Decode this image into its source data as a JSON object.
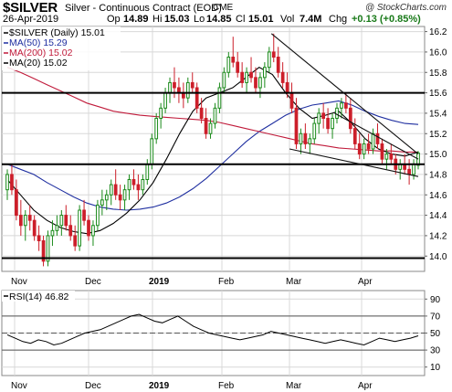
{
  "header": {
    "symbol": "$SILVER",
    "description": "Silver - Continuous Contract (EOD)",
    "exchange": "CME",
    "copyright": "@ StockCharts.com",
    "date": "26-Apr-2019",
    "open_label": "Op",
    "open": "14.89",
    "high_label": "Hi",
    "high": "15.03",
    "low_label": "Lo",
    "low": "14.85",
    "close_label": "Cl",
    "close": "15.01",
    "vol_label": "Vol",
    "vol": "7.4M",
    "chg_label": "Chg",
    "chg": "+0.13 (+0.85%)"
  },
  "legend": {
    "main": "$SILVER (Daily) 15.01",
    "ma50": "MA(50) 15.29",
    "ma200": "MA(200) 15.02",
    "ma20": "MA(20) 15.02",
    "rsi": "RSI(14) 46.82"
  },
  "colors": {
    "up": "#1a8a1a",
    "down": "#cc1f2a",
    "ma50": "#1f2fa0",
    "ma200": "#c01a3a",
    "ma20": "#000000",
    "grid": "#d8d8d8",
    "rsi_line": "#000000"
  },
  "chart_data": [
    {
      "type": "candlestick",
      "title": "$SILVER (Daily)",
      "ylim": [
        13.85,
        16.25
      ],
      "y_ticks": [
        "14.0",
        "14.2",
        "14.4",
        "14.6",
        "14.8",
        "15.0",
        "15.2",
        "15.4",
        "15.6",
        "15.8",
        "16.0",
        "16.2"
      ],
      "x_ticks": [
        "Nov",
        "Dec",
        "2019",
        "Feb",
        "Mar",
        "Apr"
      ],
      "grid": true,
      "legend_position": "top-left",
      "horizontal_lines": [
        15.6,
        14.9,
        13.98
      ],
      "trendlines": [
        {
          "from": [
            "2019-02-20",
            16.18
          ],
          "to": [
            "2019-04-26",
            15.0
          ]
        },
        {
          "from": [
            "2019-02-28",
            15.05
          ],
          "to": [
            "2019-04-26",
            14.78
          ]
        },
        {
          "from": [
            "2019-03-20",
            15.4
          ],
          "to": [
            "2019-04-26",
            14.95
          ]
        }
      ],
      "candles": [
        [
          14.65,
          14.85,
          14.55,
          14.8
        ],
        [
          14.8,
          14.9,
          14.6,
          14.65
        ],
        [
          14.65,
          14.75,
          14.35,
          14.4
        ],
        [
          14.4,
          14.55,
          14.2,
          14.3
        ],
        [
          14.3,
          14.45,
          14.15,
          14.4
        ],
        [
          14.4,
          14.5,
          14.25,
          14.35
        ],
        [
          14.35,
          14.4,
          14.15,
          14.2
        ],
        [
          14.2,
          14.3,
          14.05,
          14.15
        ],
        [
          14.15,
          14.2,
          13.9,
          13.95
        ],
        [
          13.95,
          14.25,
          13.9,
          14.2
        ],
        [
          14.2,
          14.35,
          14.1,
          14.25
        ],
        [
          14.25,
          14.4,
          14.2,
          14.3
        ],
        [
          14.3,
          14.45,
          14.2,
          14.4
        ],
        [
          14.4,
          14.5,
          14.25,
          14.3
        ],
        [
          14.3,
          14.4,
          14.15,
          14.2
        ],
        [
          14.2,
          14.3,
          14.05,
          14.1
        ],
        [
          14.1,
          14.5,
          14.05,
          14.45
        ],
        [
          14.45,
          14.55,
          14.3,
          14.35
        ],
        [
          14.35,
          14.4,
          14.15,
          14.2
        ],
        [
          14.2,
          14.35,
          14.1,
          14.3
        ],
        [
          14.3,
          14.55,
          14.25,
          14.5
        ],
        [
          14.5,
          14.65,
          14.4,
          14.55
        ],
        [
          14.55,
          14.65,
          14.45,
          14.6
        ],
        [
          14.6,
          14.75,
          14.5,
          14.7
        ],
        [
          14.7,
          14.85,
          14.55,
          14.6
        ],
        [
          14.6,
          14.7,
          14.45,
          14.55
        ],
        [
          14.55,
          14.7,
          14.45,
          14.65
        ],
        [
          14.65,
          14.8,
          14.55,
          14.75
        ],
        [
          14.75,
          14.85,
          14.65,
          14.7
        ],
        [
          14.7,
          14.8,
          14.55,
          14.65
        ],
        [
          14.65,
          14.8,
          14.6,
          14.75
        ],
        [
          14.75,
          14.95,
          14.7,
          14.9
        ],
        [
          14.9,
          15.2,
          14.85,
          15.15
        ],
        [
          15.15,
          15.4,
          15.1,
          15.35
        ],
        [
          15.35,
          15.5,
          15.25,
          15.45
        ],
        [
          15.45,
          15.65,
          15.4,
          15.6
        ],
        [
          15.6,
          15.75,
          15.5,
          15.7
        ],
        [
          15.7,
          15.85,
          15.55,
          15.65
        ],
        [
          15.65,
          15.75,
          15.5,
          15.6
        ],
        [
          15.6,
          15.7,
          15.45,
          15.55
        ],
        [
          15.55,
          15.75,
          15.5,
          15.7
        ],
        [
          15.7,
          15.8,
          15.6,
          15.65
        ],
        [
          15.65,
          15.7,
          15.4,
          15.45
        ],
        [
          15.45,
          15.55,
          15.3,
          15.35
        ],
        [
          15.35,
          15.45,
          15.15,
          15.2
        ],
        [
          15.2,
          15.35,
          15.15,
          15.3
        ],
        [
          15.3,
          15.5,
          15.25,
          15.45
        ],
        [
          15.45,
          15.7,
          15.4,
          15.65
        ],
        [
          15.65,
          15.85,
          15.6,
          15.8
        ],
        [
          15.8,
          16.0,
          15.75,
          15.95
        ],
        [
          15.95,
          16.15,
          15.85,
          15.9
        ],
        [
          15.9,
          16.0,
          15.75,
          15.8
        ],
        [
          15.8,
          15.9,
          15.65,
          15.7
        ],
        [
          15.7,
          15.85,
          15.6,
          15.8
        ],
        [
          15.8,
          15.95,
          15.7,
          15.75
        ],
        [
          15.75,
          15.85,
          15.6,
          15.65
        ],
        [
          15.65,
          15.8,
          15.55,
          15.75
        ],
        [
          15.75,
          15.9,
          15.65,
          15.85
        ],
        [
          15.85,
          16.05,
          15.8,
          16.0
        ],
        [
          16.0,
          16.18,
          15.9,
          15.95
        ],
        [
          15.95,
          16.05,
          15.75,
          15.8
        ],
        [
          15.8,
          15.9,
          15.65,
          15.7
        ],
        [
          15.7,
          15.8,
          15.55,
          15.6
        ],
        [
          15.6,
          15.7,
          15.4,
          15.45
        ],
        [
          15.45,
          15.55,
          15.05,
          15.1
        ],
        [
          15.1,
          15.25,
          15.0,
          15.2
        ],
        [
          15.2,
          15.3,
          15.05,
          15.1
        ],
        [
          15.1,
          15.2,
          15.0,
          15.15
        ],
        [
          15.15,
          15.35,
          15.1,
          15.3
        ],
        [
          15.3,
          15.45,
          15.2,
          15.4
        ],
        [
          15.4,
          15.5,
          15.25,
          15.35
        ],
        [
          15.35,
          15.45,
          15.2,
          15.25
        ],
        [
          15.25,
          15.4,
          15.15,
          15.35
        ],
        [
          15.35,
          15.5,
          15.3,
          15.45
        ],
        [
          15.45,
          15.55,
          15.35,
          15.5
        ],
        [
          15.5,
          15.6,
          15.4,
          15.45
        ],
        [
          15.45,
          15.55,
          15.2,
          15.25
        ],
        [
          15.25,
          15.35,
          15.05,
          15.1
        ],
        [
          15.1,
          15.2,
          14.95,
          15.0
        ],
        [
          15.0,
          15.15,
          14.95,
          15.1
        ],
        [
          15.1,
          15.2,
          15.0,
          15.05
        ],
        [
          15.05,
          15.25,
          15.0,
          15.2
        ],
        [
          15.2,
          15.3,
          15.05,
          15.1
        ],
        [
          15.1,
          15.15,
          14.9,
          14.95
        ],
        [
          14.95,
          15.05,
          14.85,
          15.0
        ],
        [
          15.0,
          15.1,
          14.9,
          14.95
        ],
        [
          14.95,
          15.0,
          14.8,
          14.85
        ],
        [
          14.85,
          14.95,
          14.75,
          14.9
        ],
        [
          14.9,
          15.0,
          14.8,
          14.85
        ],
        [
          14.85,
          14.95,
          14.7,
          14.8
        ],
        [
          14.8,
          14.95,
          14.75,
          14.9
        ],
        [
          14.89,
          15.03,
          14.85,
          15.01
        ]
      ],
      "series": [
        {
          "name": "MA(50)",
          "values": [
            14.9,
            14.85,
            14.8,
            14.72,
            14.65,
            14.58,
            14.52,
            14.48,
            14.46,
            14.45,
            14.46,
            14.48,
            14.52,
            14.58,
            14.66,
            14.76,
            14.88,
            15.0,
            15.12,
            15.22,
            15.3,
            15.38,
            15.44,
            15.48,
            15.5,
            15.52,
            15.48,
            15.42,
            15.37,
            15.33,
            15.3,
            15.29
          ]
        },
        {
          "name": "MA(200)",
          "values": [
            15.85,
            15.8,
            15.74,
            15.68,
            15.62,
            15.56,
            15.5,
            15.46,
            15.42,
            15.4,
            15.38,
            15.37,
            15.36,
            15.35,
            15.34,
            15.33,
            15.31,
            15.28,
            15.25,
            15.22,
            15.19,
            15.16,
            15.13,
            15.1,
            15.08,
            15.06,
            15.05,
            15.04,
            15.03,
            15.03,
            15.02,
            15.02
          ]
        },
        {
          "name": "MA(20)",
          "values": [
            14.75,
            14.6,
            14.45,
            14.35,
            14.28,
            14.24,
            14.22,
            14.25,
            14.32,
            14.42,
            14.55,
            14.72,
            14.95,
            15.2,
            15.42,
            15.55,
            15.6,
            15.65,
            15.75,
            15.85,
            15.78,
            15.6,
            15.45,
            15.35,
            15.38,
            15.42,
            15.3,
            15.15,
            15.05,
            15.0,
            14.98,
            15.02
          ]
        }
      ]
    },
    {
      "type": "line",
      "title": "RSI(14)",
      "ylim": [
        0,
        100
      ],
      "y_ticks": [
        "10",
        "30",
        "50",
        "70",
        "90"
      ],
      "x_ticks": [
        "Nov",
        "Dec",
        "2019",
        "Feb",
        "Mar",
        "Apr"
      ],
      "reference_lines": [
        70,
        50,
        30
      ],
      "series": [
        {
          "name": "RSI(14)",
          "values": [
            48,
            44,
            40,
            38,
            42,
            40,
            36,
            38,
            42,
            46,
            50,
            52,
            54,
            58,
            62,
            66,
            70,
            72,
            68,
            64,
            62,
            66,
            70,
            64,
            58,
            54,
            50,
            48,
            46,
            44,
            42,
            44,
            46,
            48,
            52,
            50,
            48,
            46,
            44,
            42,
            40,
            38,
            40,
            42,
            40,
            38,
            36,
            40,
            44,
            42,
            40,
            42,
            44,
            46.82
          ]
        }
      ]
    }
  ]
}
